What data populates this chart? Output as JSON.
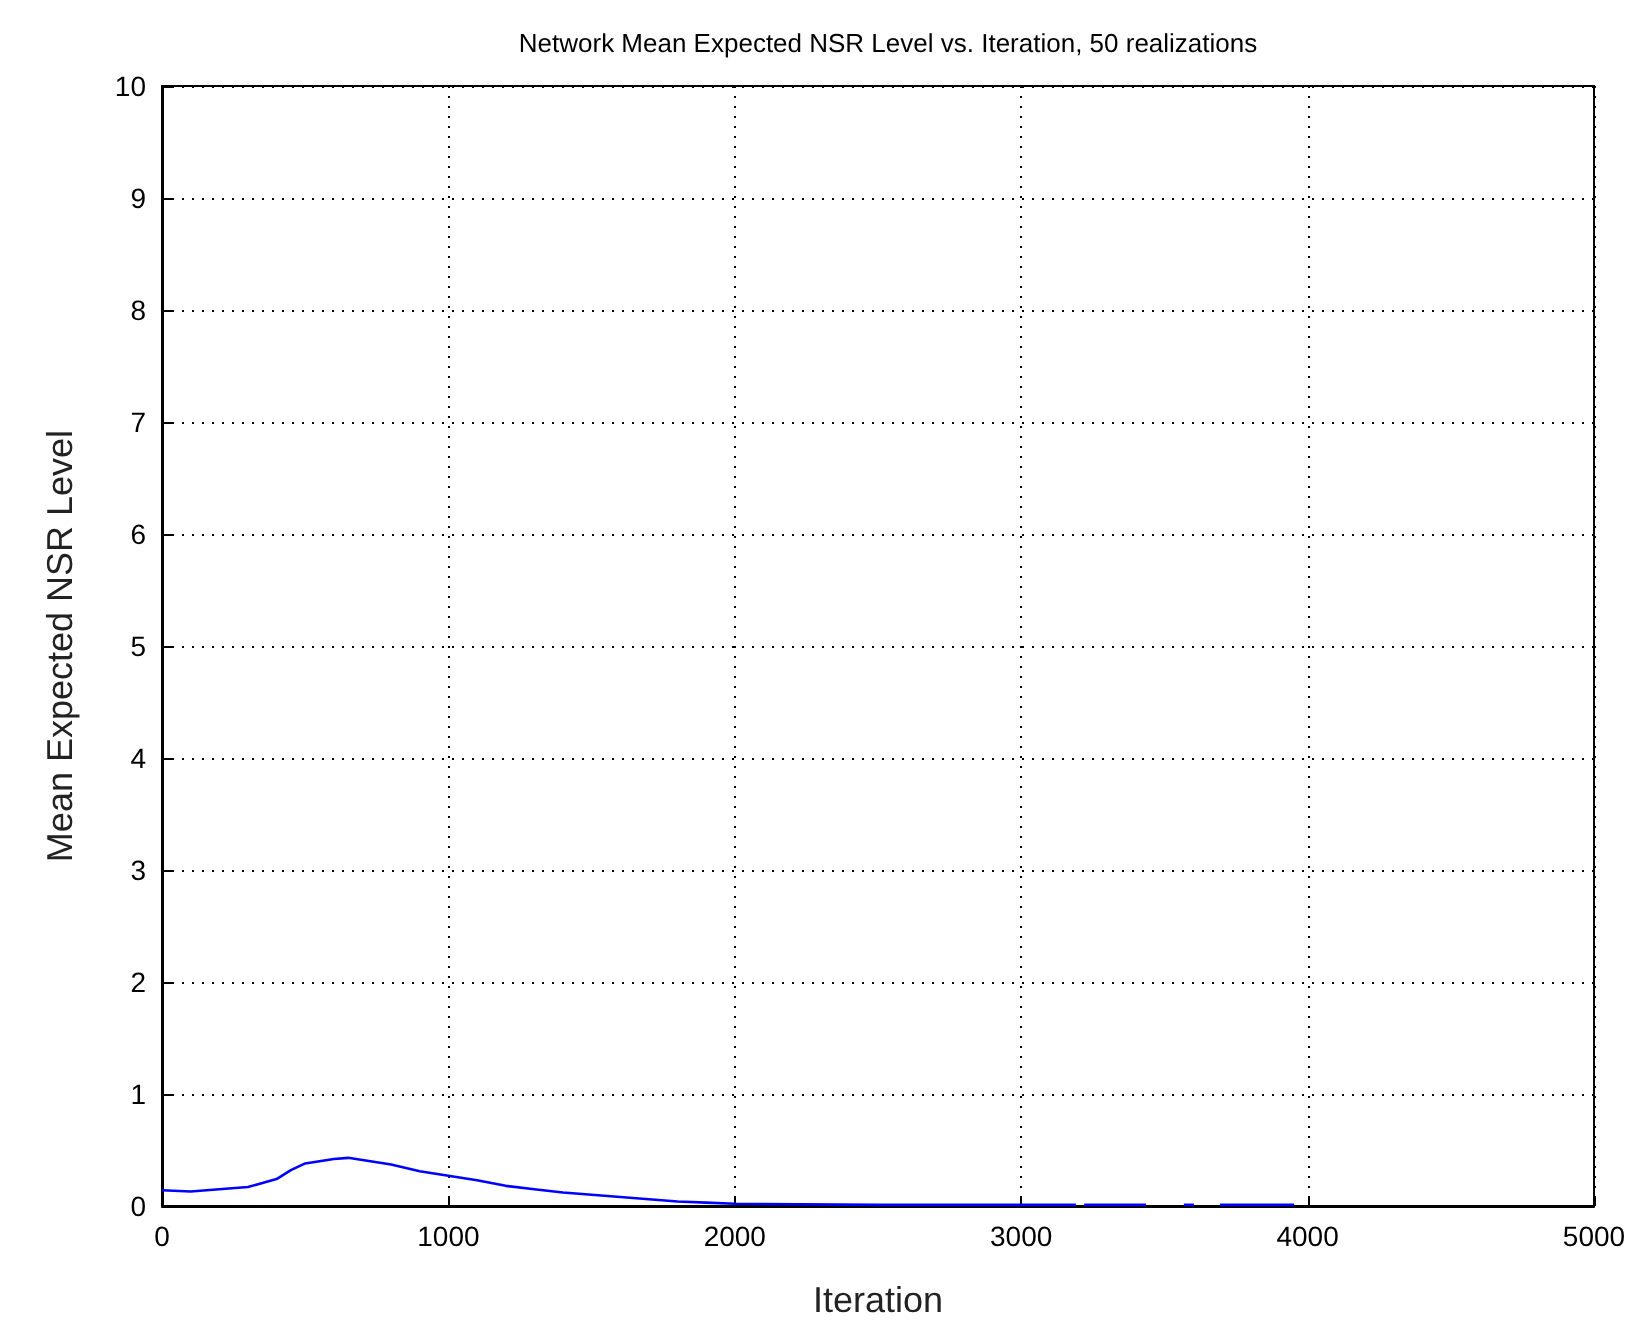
{
  "chart_data": {
    "type": "line",
    "title": "Network Mean Expected NSR Level vs. Iteration, 50 realizations",
    "xlabel": "Iteration",
    "ylabel": "Mean Expected NSR Level",
    "x": [
      0,
      100,
      200,
      300,
      400,
      450,
      500,
      550,
      600,
      650,
      700,
      800,
      900,
      1000,
      1100,
      1200,
      1300,
      1400,
      1500,
      1600,
      1700,
      1800,
      1900,
      2000,
      2500,
      3000,
      3017,
      3191,
      3205,
      3220,
      3436,
      3500,
      3568,
      3603,
      3650,
      3694,
      3953
    ],
    "series": [
      {
        "color": "#0000ff",
        "values": [
          0.14,
          0.13,
          0.15,
          0.17,
          0.24,
          0.32,
          0.38,
          0.4,
          0.42,
          0.43,
          0.41,
          0.37,
          0.31,
          0.27,
          0.23,
          0.18,
          0.15,
          0.12,
          0.1,
          0.08,
          0.06,
          0.04,
          0.03,
          0.02,
          0.01,
          0.01,
          0.01,
          0.01,
          null,
          0.01,
          0.01,
          null,
          0.01,
          0.01,
          null,
          0.01,
          0.01
        ]
      }
    ],
    "xlim": [
      0,
      5000
    ],
    "xticks": [
      0,
      1000,
      2000,
      3000,
      4000,
      5000
    ],
    "ylim": [
      0,
      10
    ],
    "yticks": [
      0,
      1,
      2,
      3,
      4,
      5,
      6,
      7,
      8,
      9,
      10
    ],
    "grid": true,
    "marker": "none",
    "line_style": "solid"
  }
}
